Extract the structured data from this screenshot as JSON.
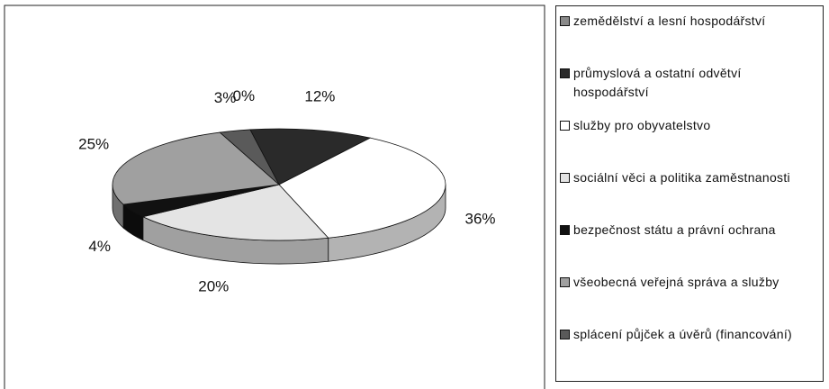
{
  "chart_data": {
    "type": "pie",
    "categories": [
      "zemědělství a lesní hospodářství",
      "průmyslová a ostatní odvětví hospodářství",
      "služby pro obyvatelstvo",
      "sociální věci a politika zaměstnanosti",
      "bezpečnost státu a právní ochrana",
      "všeobecná veřejná správa a služby",
      "splácení půjček a úvěrů (financování)"
    ],
    "values": [
      0,
      12,
      36,
      20,
      4,
      25,
      3
    ],
    "value_labels": [
      "0%",
      "12%",
      "36%",
      "20%",
      "4%",
      "25%",
      "3%"
    ],
    "colors": [
      "#8a8a8a",
      "#2a2a2a",
      "#ffffff",
      "#e4e4e4",
      "#111111",
      "#a0a0a0",
      "#5a5a5a"
    ]
  }
}
